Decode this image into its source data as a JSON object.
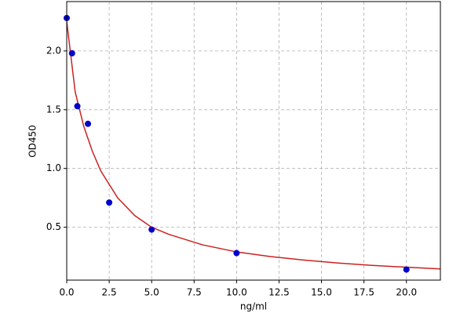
{
  "chart_data": {
    "type": "scatter",
    "x_label": "ng/ml",
    "y_label": "OD450",
    "xlim": [
      0,
      22
    ],
    "ylim": [
      0.05,
      2.42
    ],
    "xticks": [
      {
        "value": 0,
        "label": "0.0"
      },
      2.5,
      {
        "value": 5,
        "label": "5.0"
      },
      7.5,
      {
        "value": 10,
        "label": "10.0"
      },
      12.5,
      {
        "value": 15,
        "label": "15.0"
      },
      17.5,
      {
        "value": 20,
        "label": "20.0"
      }
    ],
    "yticks": [
      0.5,
      {
        "value": 1,
        "label": "1.0"
      },
      1.5,
      {
        "value": 2,
        "label": "2.0"
      }
    ],
    "grid": true,
    "series": [
      {
        "type": "scatter",
        "color": "#0000cc",
        "x": [
          0,
          0.3125,
          0.625,
          1.25,
          2.5,
          5,
          10,
          20
        ],
        "values": [
          2.28,
          1.98,
          1.53,
          1.38,
          0.71,
          0.48,
          0.28,
          0.14
        ]
      },
      {
        "type": "line",
        "color": "#cc2222",
        "x": [
          0,
          0.5,
          1,
          1.5,
          2,
          3,
          4,
          5,
          6,
          8,
          10,
          12,
          14,
          16,
          18,
          20,
          22
        ],
        "values": [
          2.25,
          1.65,
          1.36,
          1.15,
          0.98,
          0.75,
          0.6,
          0.5,
          0.44,
          0.35,
          0.29,
          0.25,
          0.22,
          0.195,
          0.175,
          0.16,
          0.145
        ]
      }
    ]
  }
}
